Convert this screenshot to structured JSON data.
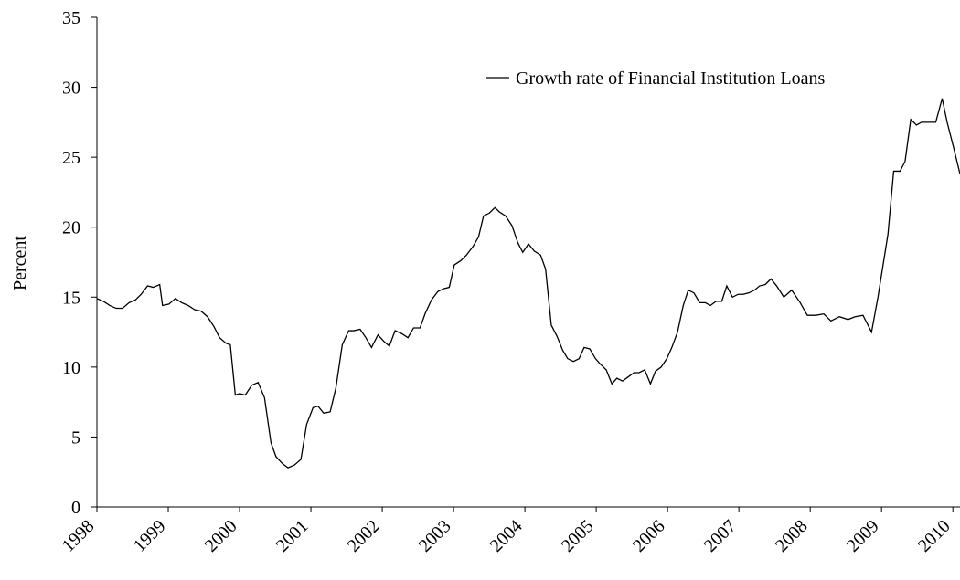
{
  "chart_data": {
    "type": "line",
    "y_label": "Percent",
    "xlim": [
      1998,
      2010.1
    ],
    "xticks": [
      1998,
      1999,
      2000,
      2001,
      2002,
      2003,
      2004,
      2005,
      2006,
      2007,
      2008,
      2009,
      2010
    ],
    "ylim": [
      0,
      35
    ],
    "yticks": [
      0,
      5,
      10,
      15,
      20,
      25,
      30,
      35
    ],
    "legend": "top-right",
    "x": [
      1998.0,
      1998.09,
      1998.18,
      1998.27,
      1998.36,
      1998.45,
      1998.54,
      1998.62,
      1998.71,
      1998.79,
      1998.88,
      1998.92,
      1999.01,
      1999.1,
      1999.19,
      1999.28,
      1999.37,
      1999.46,
      1999.55,
      1999.64,
      1999.72,
      1999.81,
      1999.87,
      1999.94,
      2000.0,
      2000.08,
      2000.17,
      2000.26,
      2000.35,
      2000.44,
      2000.51,
      2000.6,
      2000.68,
      2000.77,
      2000.86,
      2000.94,
      2001.03,
      2001.1,
      2001.18,
      2001.27,
      2001.35,
      2001.44,
      2001.53,
      2001.6,
      2001.69,
      2001.77,
      2001.85,
      2001.94,
      2002.03,
      2002.1,
      2002.18,
      2002.27,
      2002.36,
      2002.44,
      2002.53,
      2002.6,
      2002.69,
      2002.78,
      2002.86,
      2002.94,
      2003.01,
      2003.1,
      2003.18,
      2003.27,
      2003.35,
      2003.42,
      2003.5,
      2003.58,
      2003.64,
      2003.73,
      2003.82,
      2003.9,
      2003.97,
      2004.05,
      2004.13,
      2004.22,
      2004.29,
      2004.37,
      2004.45,
      2004.53,
      2004.6,
      2004.68,
      2004.76,
      2004.83,
      2004.91,
      2004.99,
      2005.06,
      2005.14,
      2005.22,
      2005.29,
      2005.37,
      2005.45,
      2005.53,
      2005.6,
      2005.68,
      2005.76,
      2005.83,
      2005.91,
      2005.99,
      2006.06,
      2006.14,
      2006.22,
      2006.29,
      2006.37,
      2006.45,
      2006.53,
      2006.6,
      2006.68,
      2006.76,
      2006.83,
      2006.91,
      2006.99,
      2007.06,
      2007.14,
      2007.22,
      2007.29,
      2007.37,
      2007.45,
      2007.53,
      2007.63,
      2007.74,
      2007.86,
      2007.96,
      2008.08,
      2008.19,
      2008.29,
      2008.41,
      2008.53,
      2008.63,
      2008.74,
      2008.86,
      2008.95,
      2009.09,
      2009.17,
      2009.26,
      2009.33,
      2009.41,
      2009.49,
      2009.56,
      2009.76,
      2009.85,
      2009.92,
      2010.01,
      2010.1
    ],
    "series": [
      {
        "name": "Growth rate of Financial Institution Loans",
        "color": "#000000",
        "values": [
          14.9,
          14.7,
          14.4,
          14.2,
          14.2,
          14.6,
          14.8,
          15.2,
          15.8,
          15.7,
          15.9,
          14.4,
          14.5,
          14.9,
          14.6,
          14.4,
          14.1,
          14.0,
          13.6,
          12.9,
          12.1,
          11.7,
          11.6,
          8.0,
          8.1,
          8.0,
          8.7,
          8.9,
          7.8,
          4.6,
          3.6,
          3.1,
          2.8,
          3.0,
          3.4,
          5.9,
          7.1,
          7.2,
          6.7,
          6.8,
          8.5,
          11.6,
          12.6,
          12.6,
          12.7,
          12.1,
          11.4,
          12.3,
          11.8,
          11.5,
          12.6,
          12.4,
          12.1,
          12.8,
          12.8,
          13.8,
          14.8,
          15.4,
          15.6,
          15.7,
          17.3,
          17.6,
          18.0,
          18.6,
          19.3,
          20.8,
          21.0,
          21.4,
          21.1,
          20.8,
          20.1,
          18.9,
          18.2,
          18.8,
          18.3,
          18.0,
          17.0,
          13.0,
          12.2,
          11.2,
          10.6,
          10.4,
          10.6,
          11.4,
          11.3,
          10.6,
          10.2,
          9.8,
          8.8,
          9.2,
          9.0,
          9.3,
          9.6,
          9.6,
          9.8,
          8.8,
          9.7,
          10.0,
          10.6,
          11.4,
          12.5,
          14.4,
          15.5,
          15.3,
          14.6,
          14.6,
          14.4,
          14.7,
          14.7,
          15.8,
          15.0,
          15.2,
          15.2,
          15.3,
          15.5,
          15.8,
          15.9,
          16.3,
          15.8,
          15.0,
          15.5,
          14.6,
          13.7,
          13.7,
          13.8,
          13.3,
          13.6,
          13.4,
          13.6,
          13.7,
          12.5,
          15.0,
          19.5,
          24.0,
          24.0,
          24.7,
          27.7,
          27.3,
          27.5,
          27.5,
          29.2,
          27.5,
          25.7,
          23.8
        ]
      }
    ]
  }
}
